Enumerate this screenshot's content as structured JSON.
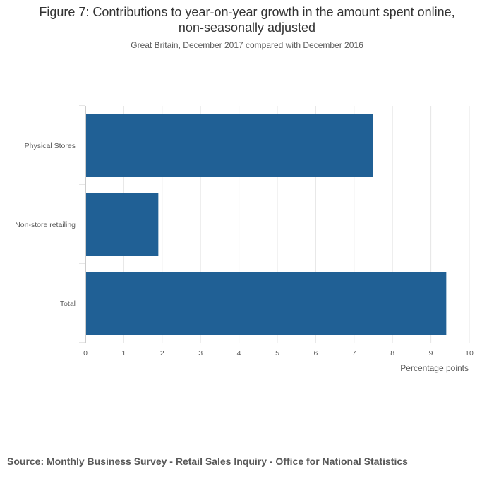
{
  "header": {
    "title_line1": "Figure 7: Contributions to year-on-year growth in the amount spent online,",
    "title_line2": "non-seasonally adjusted",
    "subtitle": "Great Britain, December 2017 compared with December 2016"
  },
  "chart_data": {
    "type": "bar",
    "orientation": "horizontal",
    "categories": [
      "Physical Stores",
      "Non-store retailing",
      "Total"
    ],
    "values": [
      7.5,
      1.9,
      9.4
    ],
    "xlabel": "Percentage points",
    "xlim": [
      0,
      10
    ],
    "xticks": [
      "0",
      "1",
      "2",
      "3",
      "4",
      "5",
      "6",
      "7",
      "8",
      "9",
      "10"
    ],
    "grid": true,
    "bar_color": "#206095"
  },
  "footer": {
    "source": "Source: Monthly Business Survey - Retail Sales Inquiry - Office for National Statistics"
  }
}
